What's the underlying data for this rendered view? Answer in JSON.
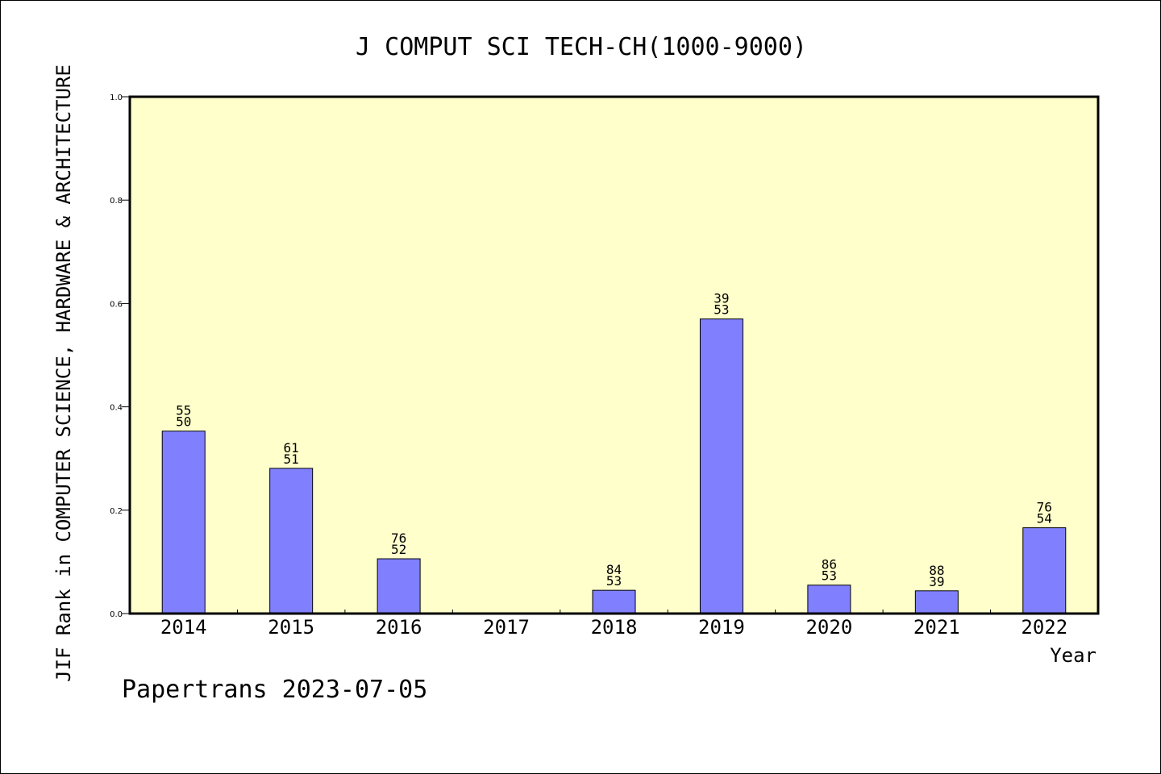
{
  "chart_data": {
    "type": "bar",
    "title": "J COMPUT SCI TECH-CH(1000-9000)",
    "xlabel": "Year",
    "ylabel": "JIF Rank in COMPUTER SCIENCE, HARDWARE & ARCHITECTURE",
    "ylim": [
      0,
      1.0
    ],
    "yticks": [
      "0.0",
      "0.2",
      "0.4",
      "0.6",
      "0.8",
      "1.0"
    ],
    "categories": [
      "2014",
      "2015",
      "2016",
      "2017",
      "2018",
      "2019",
      "2020",
      "2021",
      "2022"
    ],
    "values": [
      0.353,
      0.281,
      0.106,
      null,
      0.045,
      0.57,
      0.055,
      0.044,
      0.166
    ],
    "labels": [
      [
        "55",
        "50"
      ],
      [
        "61",
        "51"
      ],
      [
        "76",
        "52"
      ],
      null,
      [
        "84",
        "53"
      ],
      [
        "39",
        "53"
      ],
      [
        "86",
        "53"
      ],
      [
        "88",
        "39"
      ],
      [
        "76",
        "54"
      ]
    ],
    "colors": {
      "plot_bg": "#ffffcc",
      "bar": "#8080ff",
      "bar_edge": "#000000"
    }
  },
  "footer": "Papertrans 2023-07-05"
}
